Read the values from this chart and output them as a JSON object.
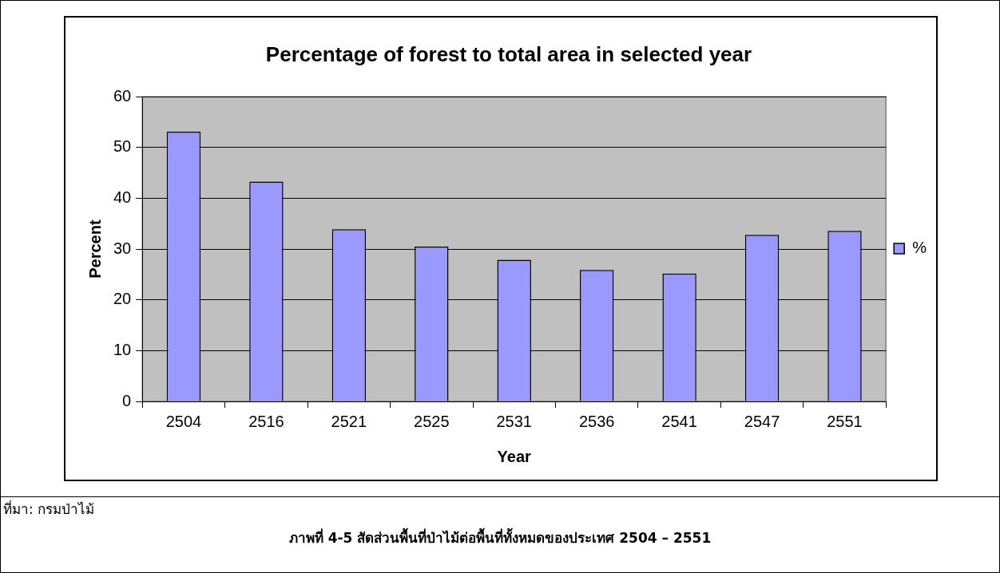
{
  "chart_data": {
    "type": "bar",
    "title": "Percentage of forest to total area in selected year",
    "xlabel": "Year",
    "ylabel": "Percent",
    "categories": [
      "2504",
      "2516",
      "2521",
      "2525",
      "2531",
      "2536",
      "2541",
      "2547",
      "2551"
    ],
    "series": [
      {
        "name": "%",
        "color": "#9999ff",
        "values": [
          53.1,
          43.3,
          33.9,
          30.5,
          27.9,
          25.9,
          25.2,
          32.8,
          33.6
        ]
      }
    ],
    "ylim": [
      0,
      60
    ],
    "yticks": [
      0,
      10,
      20,
      30,
      40,
      50,
      60
    ],
    "grid": "y",
    "legend": "right",
    "annotations": [
      "ที่มา: กรมป่าไม้",
      "ภาพที่ 4-5  สัดส่วนพื้นที่ป่าไม้ต่อพื้นที่ทั้งหมดของประเทศ 2504 – 2551"
    ]
  }
}
